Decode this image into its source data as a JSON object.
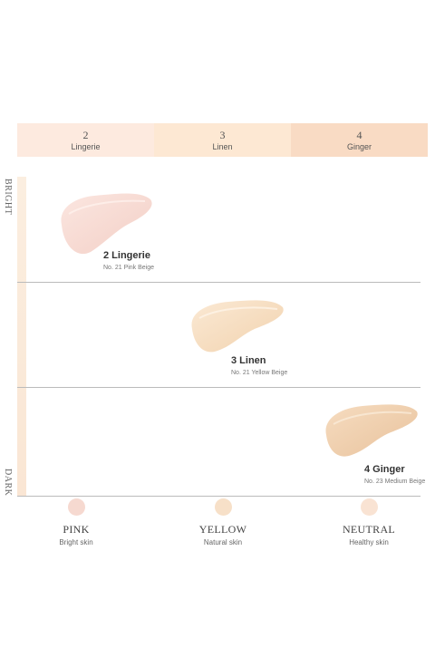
{
  "shades": [
    {
      "num": "2",
      "name": "Lingerie",
      "color": "#fdeadf"
    },
    {
      "num": "3",
      "name": "Linen",
      "color": "#fde8d3"
    },
    {
      "num": "4",
      "name": "Ginger",
      "color": "#f9dbc4"
    }
  ],
  "axis": {
    "top": "BRIGHT",
    "bottom": "DARK"
  },
  "swatches": [
    {
      "title": "2 Lingerie",
      "subtitle": "No. 21 Pink Beige",
      "color": "#f8d9d0"
    },
    {
      "title": "3 Linen",
      "subtitle": "No. 21 Yellow Beige",
      "color": "#f6dcbd"
    },
    {
      "title": "4 Ginger",
      "subtitle": "No. 23 Medium Beige",
      "color": "#f0cfa9"
    }
  ],
  "tones": [
    {
      "label": "PINK",
      "sub": "Bright skin",
      "color": "#f6d9d0"
    },
    {
      "label": "YELLOW",
      "sub": "Natural skin",
      "color": "#f7e0c8"
    },
    {
      "label": "NEUTRAL",
      "sub": "Healthy skin",
      "color": "#f9e3d3"
    }
  ]
}
